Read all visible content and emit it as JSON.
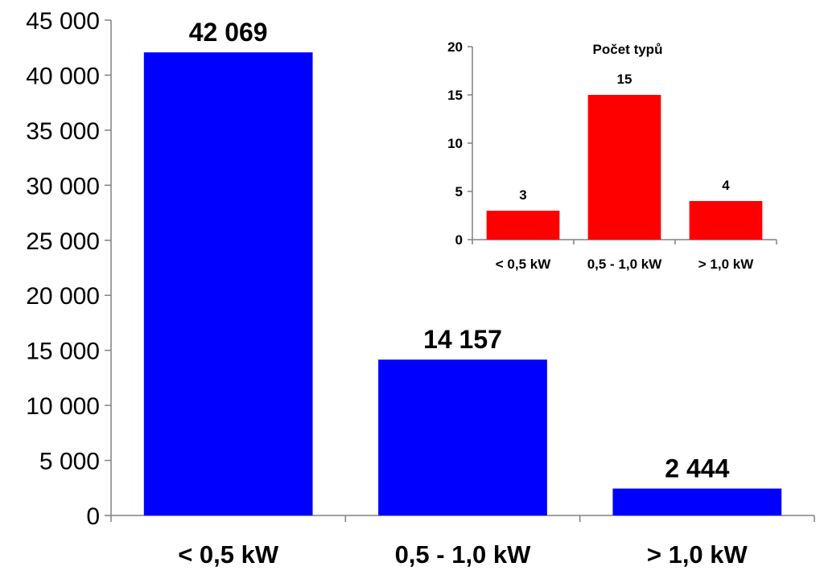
{
  "chart_data": [
    {
      "type": "bar",
      "title": "",
      "xlabel": "",
      "ylabel": "",
      "categories": [
        "< 0,5 kW",
        "0,5 - 1,0 kW",
        "> 1,0 kW"
      ],
      "values": [
        42069,
        14157,
        2444
      ],
      "value_labels": [
        "42 069",
        "14 157",
        "2 444"
      ],
      "ylim": [
        0,
        45000
      ],
      "yticks": [
        0,
        5000,
        10000,
        15000,
        20000,
        25000,
        30000,
        35000,
        40000,
        45000
      ],
      "ytick_labels": [
        "0",
        "5 000",
        "10 000",
        "15 000",
        "20 000",
        "25 000",
        "30 000",
        "35 000",
        "40 000",
        "45 000"
      ],
      "bar_color": "#0000FF",
      "grid": false,
      "legend": "none"
    },
    {
      "type": "bar",
      "title": "Počet typů",
      "xlabel": "",
      "ylabel": "",
      "categories": [
        "< 0,5 kW",
        "0,5 - 1,0 kW",
        "> 1,0 kW"
      ],
      "values": [
        3,
        15,
        4
      ],
      "value_labels": [
        "3",
        "15",
        "4"
      ],
      "ylim": [
        0,
        20
      ],
      "yticks": [
        0,
        5,
        10,
        15,
        20
      ],
      "ytick_labels": [
        "0",
        "5",
        "10",
        "15",
        "20"
      ],
      "bar_color": "#FF0000",
      "grid": false,
      "legend": "none"
    }
  ]
}
